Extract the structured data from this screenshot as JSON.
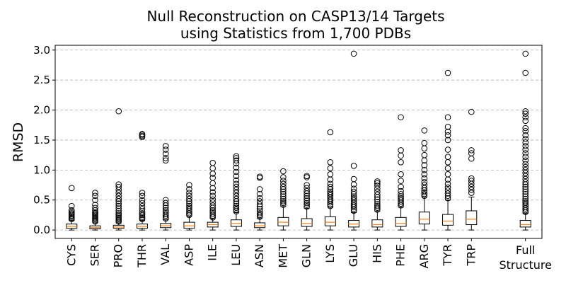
{
  "chart_data": {
    "type": "box",
    "title_lines": [
      "Null Reconstruction on CASP13/14 Targets",
      "using Statistics from 1,700 PDBs"
    ],
    "xlabel": "",
    "ylabel": "RMSD",
    "ylim": [
      -0.14,
      3.08
    ],
    "yticks": [
      "0.0",
      "0.5",
      "1.0",
      "1.5",
      "2.0",
      "2.5",
      "3.0"
    ],
    "grid": "y-dashed",
    "box_color": "#000000",
    "median_color": "#ff7f0e",
    "categories": [
      "CYS",
      "SER",
      "PRO",
      "THR",
      "VAL",
      "ASP",
      "ILE",
      "LEU",
      "ASN",
      "MET",
      "GLN",
      "LYS",
      "GLU",
      "HIS",
      "PHE",
      "ARG",
      "TYR",
      "TRP",
      "Full Structure"
    ],
    "boxes": [
      {
        "category": "CYS",
        "position": 1,
        "whislo": 0.0,
        "q1": 0.03,
        "med": 0.06,
        "q3": 0.1,
        "whishi": 0.16,
        "fliers": [
          0.18,
          0.2,
          0.22,
          0.24,
          0.26,
          0.28,
          0.3,
          0.33,
          0.4,
          0.7
        ]
      },
      {
        "category": "SER",
        "position": 2,
        "whislo": 0.0,
        "q1": 0.02,
        "med": 0.04,
        "q3": 0.07,
        "whishi": 0.12,
        "fliers": [
          0.14,
          0.16,
          0.18,
          0.2,
          0.22,
          0.24,
          0.26,
          0.28,
          0.3,
          0.33,
          0.37,
          0.42,
          0.5,
          0.57,
          0.62
        ]
      },
      {
        "category": "PRO",
        "position": 3,
        "whislo": 0.0,
        "q1": 0.03,
        "med": 0.05,
        "q3": 0.08,
        "whishi": 0.12,
        "fliers": [
          0.14,
          0.16,
          0.18,
          0.2,
          0.22,
          0.25,
          0.28,
          0.32,
          0.36,
          0.4,
          0.44,
          0.48,
          0.52,
          0.57,
          0.62,
          0.67,
          0.72,
          0.76,
          1.98
        ]
      },
      {
        "category": "THR",
        "position": 4,
        "whislo": 0.0,
        "q1": 0.03,
        "med": 0.06,
        "q3": 0.1,
        "whishi": 0.16,
        "fliers": [
          0.18,
          0.2,
          0.22,
          0.25,
          0.28,
          0.31,
          0.35,
          0.4,
          0.45,
          0.5,
          0.57,
          0.62,
          1.55,
          1.57,
          1.59,
          1.6
        ]
      },
      {
        "category": "VAL",
        "position": 5,
        "whislo": 0.0,
        "q1": 0.04,
        "med": 0.07,
        "q3": 0.11,
        "whishi": 0.17,
        "fliers": [
          0.19,
          0.21,
          0.24,
          0.27,
          0.3,
          0.33,
          0.37,
          0.41,
          0.45,
          0.5,
          1.16,
          1.2,
          1.27,
          1.34,
          1.4
        ]
      },
      {
        "category": "ASP",
        "position": 6,
        "whislo": 0.0,
        "q1": 0.03,
        "med": 0.07,
        "q3": 0.13,
        "whishi": 0.23,
        "fliers": [
          0.25,
          0.28,
          0.31,
          0.34,
          0.37,
          0.4,
          0.44,
          0.48,
          0.52,
          0.57,
          0.62,
          0.68,
          0.75
        ]
      },
      {
        "category": "ILE",
        "position": 7,
        "whislo": 0.0,
        "q1": 0.05,
        "med": 0.09,
        "q3": 0.13,
        "whishi": 0.19,
        "fliers": [
          0.21,
          0.24,
          0.27,
          0.3,
          0.33,
          0.37,
          0.41,
          0.46,
          0.51,
          0.57,
          0.63,
          0.7,
          0.78,
          0.87,
          0.94,
          1.03,
          1.12
        ]
      },
      {
        "category": "LEU",
        "position": 8,
        "whislo": 0.0,
        "q1": 0.06,
        "med": 0.11,
        "q3": 0.17,
        "whishi": 0.29,
        "fliers": [
          0.31,
          0.34,
          0.37,
          0.4,
          0.44,
          0.48,
          0.52,
          0.57,
          0.62,
          0.67,
          0.72,
          0.77,
          0.83,
          0.9,
          0.97,
          1.04,
          1.11,
          1.16,
          1.2,
          1.23
        ]
      },
      {
        "category": "ASN",
        "position": 9,
        "whislo": 0.0,
        "q1": 0.04,
        "med": 0.07,
        "q3": 0.12,
        "whishi": 0.2,
        "fliers": [
          0.22,
          0.25,
          0.28,
          0.31,
          0.35,
          0.39,
          0.43,
          0.48,
          0.53,
          0.6,
          0.68,
          0.87,
          0.89
        ]
      },
      {
        "category": "MET",
        "position": 10,
        "whislo": 0.0,
        "q1": 0.07,
        "med": 0.13,
        "q3": 0.21,
        "whishi": 0.39,
        "fliers": [
          0.42,
          0.45,
          0.48,
          0.52,
          0.56,
          0.6,
          0.64,
          0.68,
          0.72,
          0.77,
          0.82,
          0.88,
          0.98
        ]
      },
      {
        "category": "GLN",
        "position": 11,
        "whislo": 0.0,
        "q1": 0.06,
        "med": 0.11,
        "q3": 0.19,
        "whishi": 0.36,
        "fliers": [
          0.39,
          0.42,
          0.45,
          0.49,
          0.53,
          0.57,
          0.61,
          0.65,
          0.7,
          0.75,
          0.88,
          0.9
        ]
      },
      {
        "category": "LYS",
        "position": 12,
        "whislo": 0.0,
        "q1": 0.07,
        "med": 0.13,
        "q3": 0.22,
        "whishi": 0.38,
        "fliers": [
          0.4,
          0.43,
          0.46,
          0.49,
          0.52,
          0.55,
          0.58,
          0.61,
          0.64,
          0.68,
          0.72,
          0.77,
          0.84,
          0.93,
          1.03,
          1.13,
          1.63
        ]
      },
      {
        "category": "GLU",
        "position": 13,
        "whislo": 0.0,
        "q1": 0.05,
        "med": 0.1,
        "q3": 0.16,
        "whishi": 0.29,
        "fliers": [
          0.32,
          0.35,
          0.38,
          0.41,
          0.44,
          0.47,
          0.5,
          0.53,
          0.56,
          0.6,
          0.64,
          0.69,
          0.76,
          0.85,
          1.07,
          2.94
        ]
      },
      {
        "category": "HIS",
        "position": 14,
        "whislo": 0.0,
        "q1": 0.05,
        "med": 0.09,
        "q3": 0.17,
        "whishi": 0.31,
        "fliers": [
          0.34,
          0.37,
          0.4,
          0.43,
          0.47,
          0.51,
          0.55,
          0.59,
          0.64,
          0.69,
          0.74,
          0.78,
          0.81
        ]
      },
      {
        "category": "PHE",
        "position": 15,
        "whislo": 0.0,
        "q1": 0.06,
        "med": 0.11,
        "q3": 0.21,
        "whishi": 0.38,
        "fliers": [
          0.41,
          0.44,
          0.47,
          0.5,
          0.53,
          0.56,
          0.6,
          0.65,
          0.72,
          0.82,
          0.93,
          1.13,
          1.24,
          1.33,
          1.88
        ]
      },
      {
        "category": "ARG",
        "position": 16,
        "whislo": 0.0,
        "q1": 0.1,
        "med": 0.18,
        "q3": 0.3,
        "whishi": 0.55,
        "fliers": [
          0.57,
          0.6,
          0.63,
          0.66,
          0.7,
          0.75,
          0.8,
          0.86,
          0.93,
          1.0,
          1.08,
          1.16,
          1.25,
          1.36,
          1.45,
          1.66
        ]
      },
      {
        "category": "TYR",
        "position": 17,
        "whislo": 0.0,
        "q1": 0.08,
        "med": 0.15,
        "q3": 0.26,
        "whishi": 0.5,
        "fliers": [
          0.53,
          0.57,
          0.61,
          0.66,
          0.71,
          0.77,
          0.84,
          0.93,
          1.03,
          1.13,
          1.22,
          1.34,
          1.5,
          1.58,
          1.64,
          1.72,
          1.88,
          2.62
        ]
      },
      {
        "category": "TRP",
        "position": 18,
        "whislo": 0.0,
        "q1": 0.09,
        "med": 0.18,
        "q3": 0.32,
        "whishi": 0.55,
        "fliers": [
          0.62,
          0.67,
          0.72,
          0.77,
          0.82,
          0.86,
          1.19,
          1.28,
          1.33,
          1.97
        ]
      },
      {
        "category": "Full Structure",
        "position": 20.3,
        "whislo": 0.0,
        "q1": 0.05,
        "med": 0.09,
        "q3": 0.16,
        "whishi": 0.28,
        "fliers": [
          0.3,
          0.33,
          0.36,
          0.39,
          0.42,
          0.45,
          0.48,
          0.52,
          0.56,
          0.6,
          0.64,
          0.68,
          0.72,
          0.76,
          0.8,
          0.85,
          0.9,
          0.95,
          1.0,
          1.05,
          1.1,
          1.16,
          1.22,
          1.28,
          1.34,
          1.4,
          1.46,
          1.52,
          1.58,
          1.65,
          1.7,
          1.82,
          1.88,
          1.94,
          1.98,
          2.62,
          2.94
        ]
      }
    ]
  }
}
